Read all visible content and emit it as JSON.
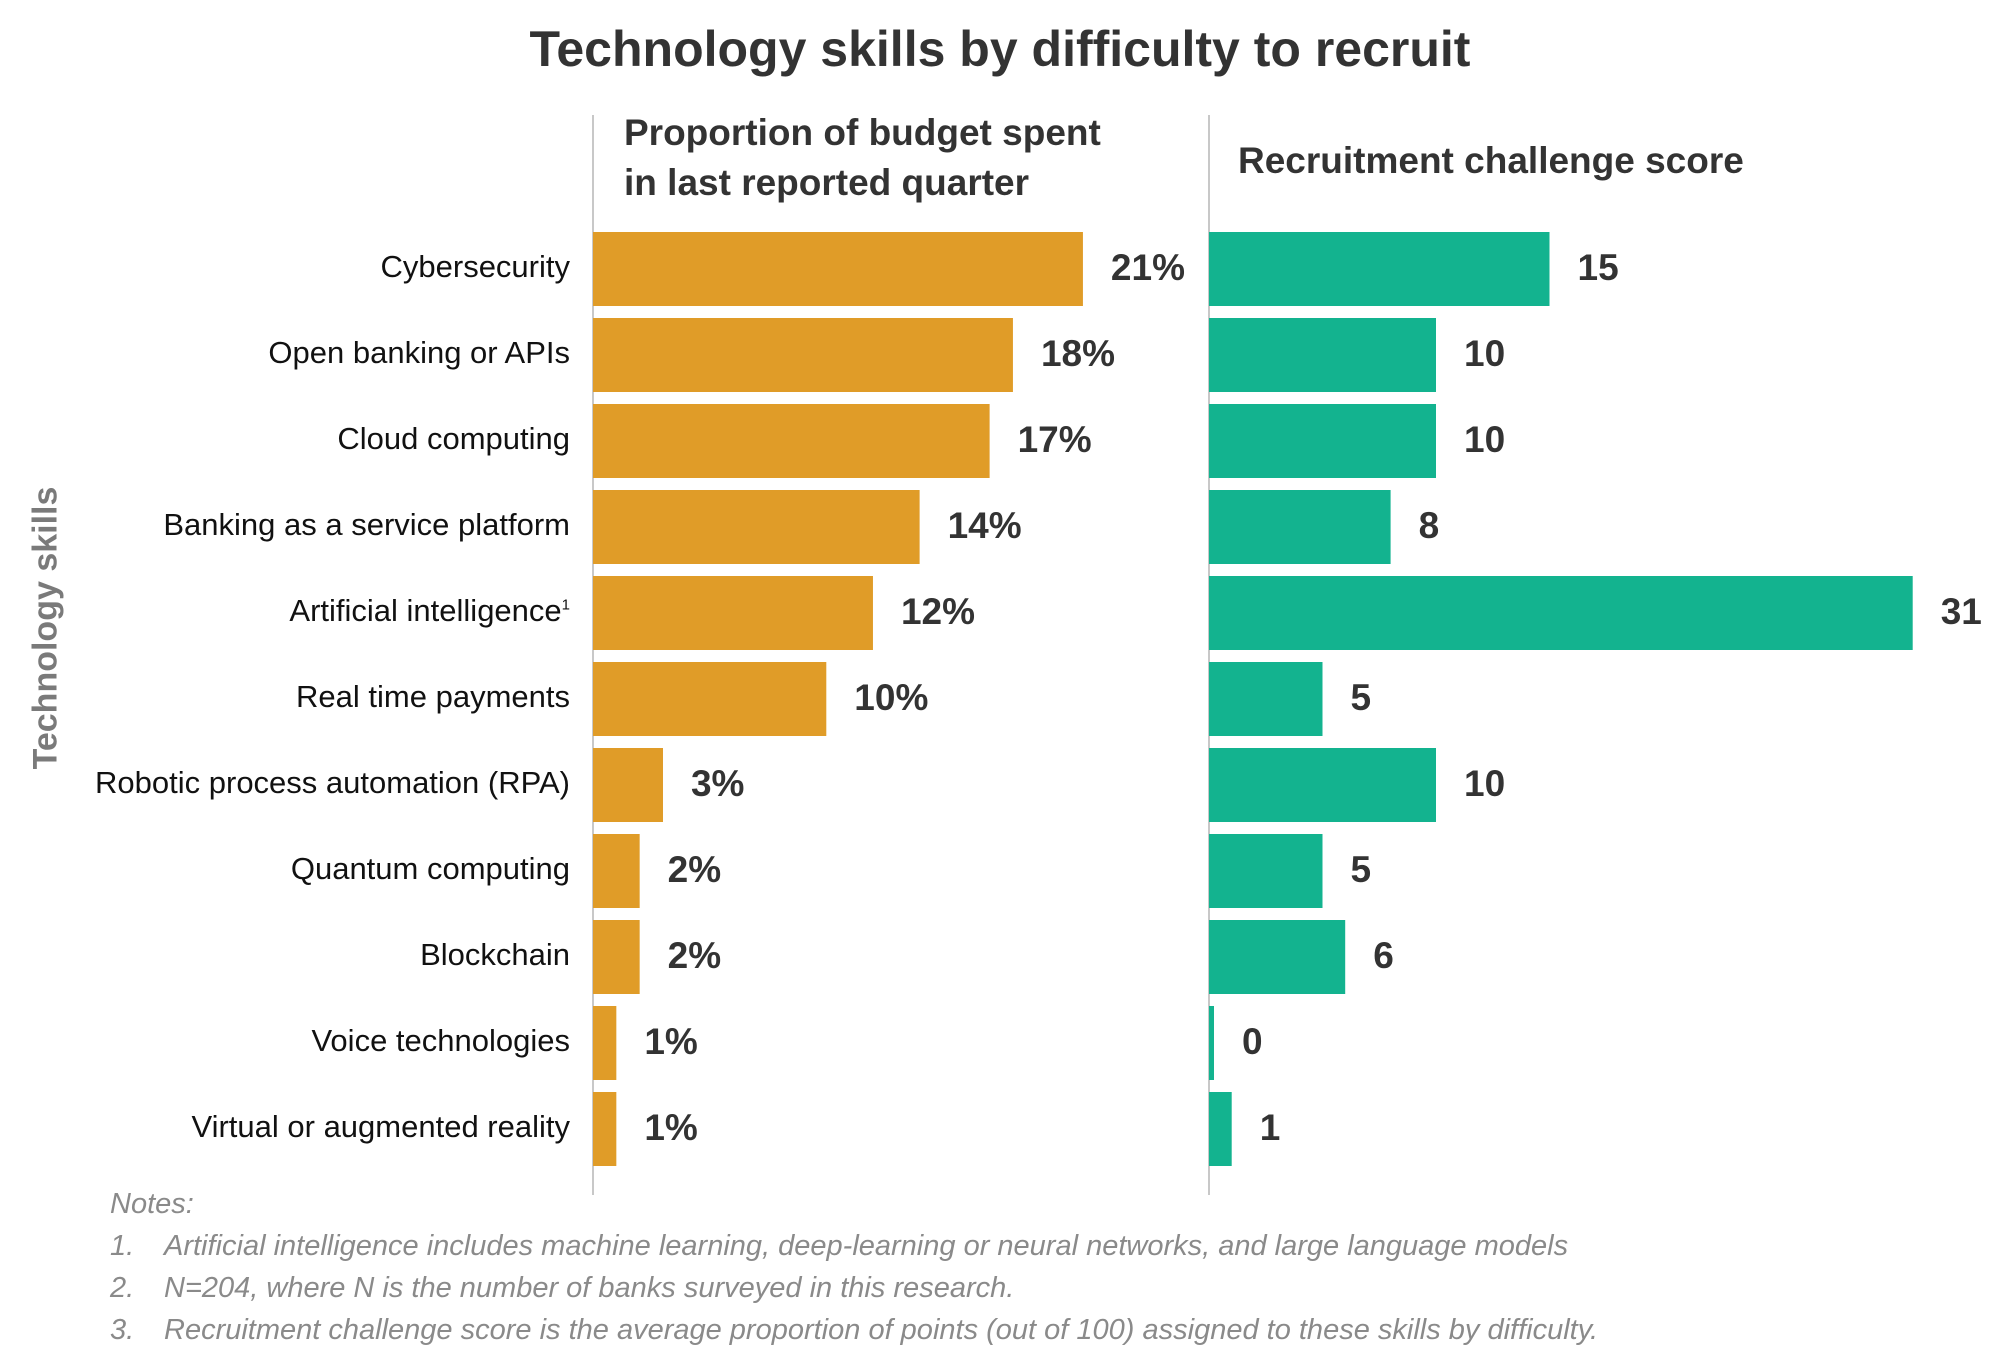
{
  "chart_data": {
    "type": "bar",
    "orientation": "horizontal",
    "title": "Technology skills by difficulty to recruit",
    "ylabel": "Technology skills",
    "categories": [
      "Cybersecurity",
      "Open banking or APIs",
      "Cloud computing",
      "Banking as a service platform",
      "Artificial intelligence",
      "Real time payments",
      "Robotic process automation (RPA)",
      "Quantum computing",
      "Blockchain",
      "Voice technologies",
      "Virtual or augmented reality"
    ],
    "category_superscripts": [
      "",
      "",
      "",
      "",
      "1",
      "",
      "",
      "",
      "",
      "",
      ""
    ],
    "panels": [
      {
        "title": "Proportion of budget spent in last reported quarter",
        "title_lines": [
          "Proportion of budget spent",
          "in last reported quarter"
        ],
        "color": "#e09c28",
        "values": [
          21,
          18,
          17,
          14,
          12,
          10,
          3,
          2,
          2,
          1,
          1
        ],
        "value_labels": [
          "21%",
          "18%",
          "17%",
          "14%",
          "12%",
          "10%",
          "3%",
          "2%",
          "2%",
          "1%",
          "1%"
        ]
      },
      {
        "title": "Recruitment challenge score",
        "title_lines": [
          "Recruitment challenge score"
        ],
        "color": "#13b38f",
        "values": [
          15,
          10,
          10,
          8,
          31,
          5,
          10,
          5,
          6,
          0,
          1
        ],
        "value_labels": [
          "15",
          "10",
          "10",
          "8",
          "31",
          "5",
          "10",
          "5",
          "6",
          "0",
          "1"
        ]
      }
    ]
  },
  "notes": {
    "heading": "Notes:",
    "items": [
      {
        "num": "1.",
        "text": "Artificial intelligence includes machine learning, deep-learning or neural networks, and large language models"
      },
      {
        "num": "2.",
        "text": "N=204, where N is the number of banks surveyed in this research."
      },
      {
        "num": "3.",
        "text": "Recruitment challenge score is the average proportion of points (out of 100) assigned to these skills by difficulty."
      }
    ]
  },
  "colors": {
    "budget_bar": "#e09c28",
    "score_bar": "#13b38f",
    "axis_line": "#c8c8c8"
  }
}
